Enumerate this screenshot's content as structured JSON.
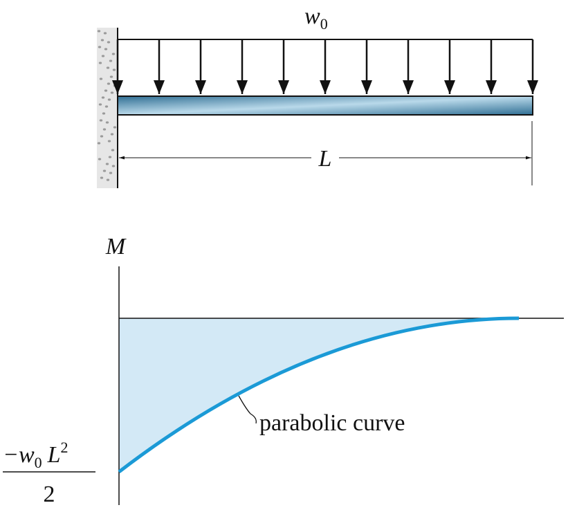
{
  "load": {
    "symbol": "w",
    "subscript": "0"
  },
  "span": {
    "label": "L"
  },
  "moment_diagram": {
    "axis_label": "M",
    "curve_label": "parabolic curve",
    "end_value": {
      "numerator_sign_symbol": "−w",
      "numerator_subscript": "0",
      "numerator_length": "L",
      "numerator_exponent": "2",
      "denominator": "2"
    }
  }
}
